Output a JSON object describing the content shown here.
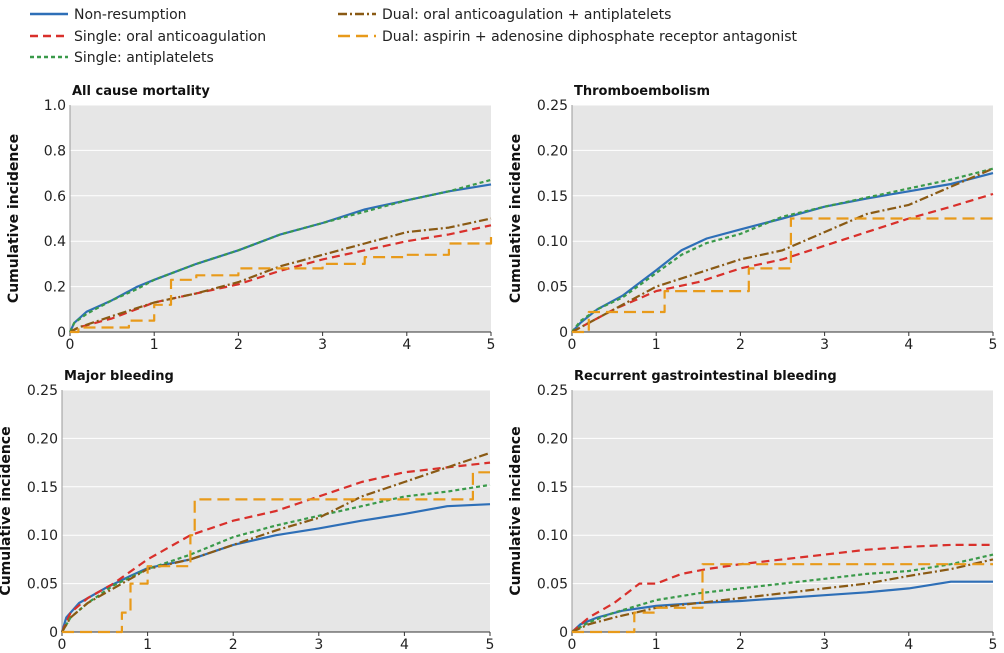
{
  "legend": [
    {
      "label": "Non-resumption",
      "color": "#2e6fb7",
      "dash": "solid"
    },
    {
      "label": "Single: oral anticoagulation",
      "color": "#d9302b",
      "dash": "dash"
    },
    {
      "label": "Single: antiplatelets",
      "color": "#3a9a4a",
      "dash": "dot-dash-fine"
    },
    {
      "label": "Dual: oral anticoagulation + antiplatelets",
      "color": "#8a5a14",
      "dash": "dash-dot"
    },
    {
      "label": "Dual: aspirin + adenosine diphosphate receptor antagonist",
      "color": "#e89a1a",
      "dash": "long-dash"
    }
  ],
  "chart_data": [
    {
      "type": "line",
      "title": "All cause mortality",
      "ylabel": "Cumulative incidence",
      "xlabel": "",
      "xlim": [
        0,
        5
      ],
      "ylim": [
        0,
        1.0
      ],
      "xticks": [
        "0",
        "1",
        "2",
        "3",
        "4",
        "5"
      ],
      "yticks": [
        "0",
        "0.2",
        "0.4",
        "0.6",
        "0.8",
        "1.0"
      ],
      "step": false,
      "series": [
        {
          "name": "Non-resumption",
          "x": [
            0,
            0.05,
            0.2,
            0.5,
            0.8,
            1.0,
            1.5,
            2.0,
            2.5,
            3.0,
            3.5,
            4.0,
            4.5,
            5.0
          ],
          "y": [
            0,
            0.04,
            0.09,
            0.14,
            0.2,
            0.23,
            0.3,
            0.36,
            0.43,
            0.48,
            0.54,
            0.58,
            0.62,
            0.65
          ]
        },
        {
          "name": "Single: oral anticoagulation",
          "x": [
            0,
            0.1,
            0.5,
            1.0,
            1.5,
            2.0,
            2.5,
            3.0,
            3.5,
            4.0,
            4.5,
            5.0
          ],
          "y": [
            0,
            0.02,
            0.06,
            0.13,
            0.17,
            0.21,
            0.27,
            0.32,
            0.36,
            0.4,
            0.43,
            0.47
          ]
        },
        {
          "name": "Single: antiplatelets",
          "x": [
            0,
            0.05,
            0.2,
            0.5,
            0.8,
            1.0,
            1.5,
            2.0,
            2.5,
            3.0,
            3.5,
            4.0,
            4.5,
            5.0
          ],
          "y": [
            0,
            0.04,
            0.08,
            0.14,
            0.19,
            0.23,
            0.3,
            0.36,
            0.43,
            0.48,
            0.53,
            0.58,
            0.62,
            0.67
          ]
        },
        {
          "name": "Dual: oral anticoagulation + antiplatelets",
          "x": [
            0,
            0.1,
            0.5,
            1.0,
            1.5,
            2.0,
            2.5,
            3.0,
            3.5,
            4.0,
            4.5,
            5.0
          ],
          "y": [
            0,
            0.02,
            0.07,
            0.13,
            0.17,
            0.22,
            0.29,
            0.34,
            0.39,
            0.44,
            0.46,
            0.5
          ]
        },
        {
          "name": "Dual: aspirin + adenosine diphosphate receptor antagonist",
          "x": [
            0,
            0.1,
            0.7,
            1.0,
            1.2,
            1.5,
            2.0,
            3.0,
            3.5,
            4.0,
            4.5,
            5.0
          ],
          "y": [
            0,
            0.02,
            0.05,
            0.12,
            0.23,
            0.25,
            0.28,
            0.3,
            0.33,
            0.34,
            0.39,
            0.44
          ],
          "step": true
        }
      ]
    },
    {
      "type": "line",
      "title": "Thromboembolism",
      "ylabel": "Cumulative incidence",
      "xlabel": "",
      "xlim": [
        0,
        5
      ],
      "ylim": [
        0,
        0.25
      ],
      "xticks": [
        "0",
        "1",
        "2",
        "3",
        "4",
        "5"
      ],
      "yticks": [
        "0",
        "0.05",
        "0.10",
        "0.15",
        "0.20",
        "0.25"
      ],
      "step": false,
      "series": [
        {
          "name": "Non-resumption",
          "x": [
            0,
            0.1,
            0.3,
            0.6,
            1.0,
            1.3,
            1.6,
            2.0,
            2.5,
            3.0,
            3.5,
            4.0,
            4.5,
            5.0
          ],
          "y": [
            0,
            0.01,
            0.025,
            0.04,
            0.068,
            0.09,
            0.103,
            0.113,
            0.125,
            0.138,
            0.147,
            0.155,
            0.163,
            0.175
          ]
        },
        {
          "name": "Single: oral anticoagulation",
          "x": [
            0,
            0.2,
            0.5,
            1.0,
            1.5,
            2.0,
            2.5,
            3.0,
            3.5,
            4.0,
            4.5,
            5.0
          ],
          "y": [
            0,
            0.01,
            0.025,
            0.045,
            0.055,
            0.07,
            0.08,
            0.095,
            0.11,
            0.125,
            0.138,
            0.152
          ]
        },
        {
          "name": "Single: antiplatelets",
          "x": [
            0,
            0.1,
            0.3,
            0.6,
            1.0,
            1.3,
            1.6,
            2.0,
            2.5,
            3.0,
            3.5,
            4.0,
            4.5,
            5.0
          ],
          "y": [
            0,
            0.012,
            0.025,
            0.038,
            0.065,
            0.085,
            0.098,
            0.108,
            0.127,
            0.138,
            0.148,
            0.158,
            0.168,
            0.18
          ]
        },
        {
          "name": "Dual: oral anticoagulation + antiplatelets",
          "x": [
            0,
            0.2,
            0.5,
            1.0,
            1.5,
            2.0,
            2.5,
            3.0,
            3.5,
            4.0,
            4.5,
            5.0
          ],
          "y": [
            0,
            0.01,
            0.025,
            0.05,
            0.065,
            0.08,
            0.09,
            0.11,
            0.13,
            0.14,
            0.16,
            0.18
          ]
        },
        {
          "name": "Dual: aspirin + adenosine diphosphate receptor antagonist",
          "x": [
            0,
            0.2,
            0.8,
            1.1,
            1.9,
            2.1,
            2.5,
            2.6,
            3.2,
            4.3,
            5.0
          ],
          "y": [
            0,
            0.022,
            0.022,
            0.045,
            0.045,
            0.07,
            0.07,
            0.125,
            0.125,
            0.125,
            0.125
          ],
          "step": true
        }
      ]
    },
    {
      "type": "line",
      "title": "Major bleeding",
      "ylabel": "Cumulative incidence",
      "xlabel": "",
      "xlim": [
        0,
        5
      ],
      "ylim": [
        0,
        0.25
      ],
      "xticks": [
        "0",
        "1",
        "2",
        "3",
        "4",
        "5"
      ],
      "yticks": [
        "0",
        "0.05",
        "0.10",
        "0.15",
        "0.20",
        "0.25"
      ],
      "step": false,
      "series": [
        {
          "name": "Non-resumption",
          "x": [
            0,
            0.05,
            0.2,
            0.5,
            0.8,
            1.0,
            1.5,
            2.0,
            2.5,
            3.0,
            3.5,
            4.0,
            4.5,
            5.0
          ],
          "y": [
            0,
            0.015,
            0.03,
            0.045,
            0.058,
            0.066,
            0.075,
            0.09,
            0.1,
            0.107,
            0.115,
            0.122,
            0.13,
            0.132
          ]
        },
        {
          "name": "Single: oral anticoagulation",
          "x": [
            0,
            0.1,
            0.3,
            0.6,
            1.0,
            1.5,
            2.0,
            2.5,
            3.0,
            3.5,
            4.0,
            4.5,
            5.0
          ],
          "y": [
            0,
            0.02,
            0.035,
            0.05,
            0.075,
            0.1,
            0.115,
            0.125,
            0.14,
            0.155,
            0.165,
            0.17,
            0.175
          ]
        },
        {
          "name": "Single: antiplatelets",
          "x": [
            0,
            0.1,
            0.3,
            0.6,
            1.0,
            1.5,
            2.0,
            2.5,
            3.0,
            3.5,
            4.0,
            4.5,
            5.0
          ],
          "y": [
            0,
            0.015,
            0.03,
            0.048,
            0.065,
            0.08,
            0.098,
            0.11,
            0.12,
            0.13,
            0.14,
            0.145,
            0.152
          ]
        },
        {
          "name": "Dual: oral anticoagulation + antiplatelets",
          "x": [
            0,
            0.1,
            0.3,
            0.6,
            1.0,
            1.5,
            2.0,
            2.5,
            3.0,
            3.5,
            4.0,
            4.5,
            5.0
          ],
          "y": [
            0,
            0.015,
            0.03,
            0.045,
            0.065,
            0.075,
            0.09,
            0.105,
            0.118,
            0.14,
            0.155,
            0.17,
            0.185
          ]
        },
        {
          "name": "Dual: aspirin + adenosine diphosphate receptor antagonist",
          "x": [
            0,
            0.65,
            0.7,
            0.8,
            1.0,
            1.3,
            1.5,
            1.55,
            3.5,
            4.5,
            4.8,
            5.0
          ],
          "y": [
            0,
            0,
            0.02,
            0.05,
            0.068,
            0.068,
            0.1,
            0.137,
            0.137,
            0.137,
            0.165,
            0.165
          ],
          "step": true
        }
      ]
    },
    {
      "type": "line",
      "title": "Recurrent gastrointestinal bleeding",
      "ylabel": "Cumulative incidence",
      "xlabel": "",
      "xlim": [
        0,
        5
      ],
      "ylim": [
        0,
        0.25
      ],
      "xticks": [
        "0",
        "1",
        "2",
        "3",
        "4",
        "5"
      ],
      "yticks": [
        "0",
        "0.05",
        "0.10",
        "0.15",
        "0.20",
        "0.25"
      ],
      "step": false,
      "series": [
        {
          "name": "Non-resumption",
          "x": [
            0,
            0.1,
            0.3,
            0.6,
            1.0,
            1.5,
            2.0,
            2.5,
            3.0,
            3.5,
            4.0,
            4.5,
            5.0
          ],
          "y": [
            0,
            0.008,
            0.015,
            0.022,
            0.027,
            0.03,
            0.032,
            0.035,
            0.038,
            0.041,
            0.045,
            0.052,
            0.052
          ]
        },
        {
          "name": "Single: oral anticoagulation",
          "x": [
            0,
            0.2,
            0.5,
            0.8,
            1.0,
            1.3,
            1.6,
            2.0,
            2.5,
            3.0,
            3.5,
            4.0,
            4.5,
            5.0
          ],
          "y": [
            0,
            0.015,
            0.03,
            0.05,
            0.05,
            0.06,
            0.065,
            0.07,
            0.075,
            0.08,
            0.085,
            0.088,
            0.09,
            0.09
          ]
        },
        {
          "name": "Single: antiplatelets",
          "x": [
            0,
            0.2,
            0.5,
            1.0,
            1.5,
            2.0,
            2.5,
            3.0,
            3.5,
            4.0,
            4.5,
            5.0
          ],
          "y": [
            0,
            0.01,
            0.02,
            0.033,
            0.04,
            0.045,
            0.05,
            0.055,
            0.06,
            0.063,
            0.07,
            0.08
          ]
        },
        {
          "name": "Dual: oral anticoagulation + antiplatelets",
          "x": [
            0,
            0.2,
            0.5,
            1.0,
            1.5,
            2.0,
            2.5,
            3.0,
            3.5,
            4.0,
            4.5,
            5.0
          ],
          "y": [
            0,
            0.008,
            0.015,
            0.025,
            0.03,
            0.035,
            0.04,
            0.045,
            0.05,
            0.058,
            0.065,
            0.075
          ]
        },
        {
          "name": "Dual: aspirin + adenosine diphosphate receptor antagonist",
          "x": [
            0,
            0.72,
            0.74,
            1.0,
            1.5,
            1.55,
            2.0,
            3.0,
            4.0,
            5.0
          ],
          "y": [
            0,
            0,
            0.02,
            0.025,
            0.025,
            0.07,
            0.07,
            0.07,
            0.07,
            0.07
          ],
          "step": true
        }
      ]
    }
  ]
}
